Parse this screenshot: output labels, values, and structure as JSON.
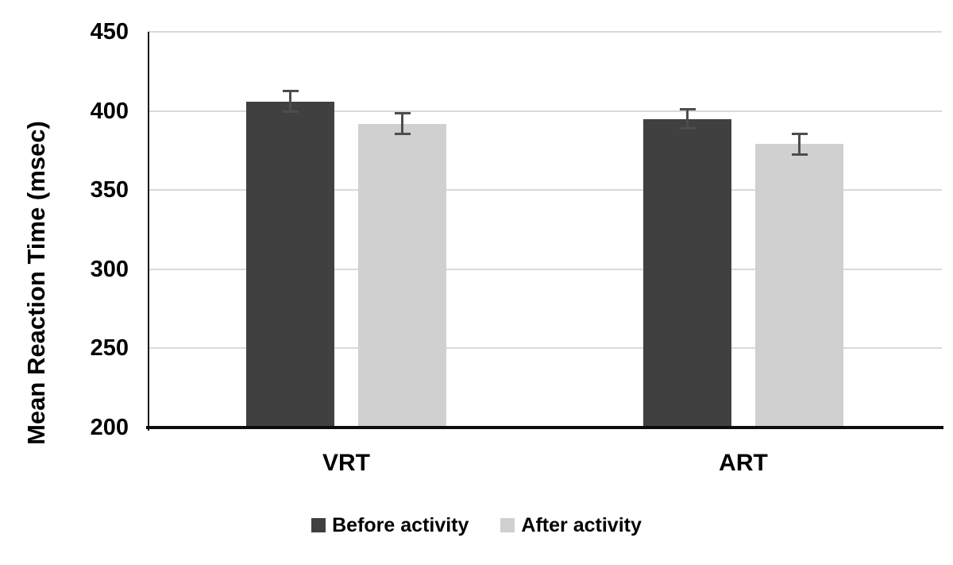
{
  "chart_data": {
    "type": "bar",
    "title": "",
    "xlabel": "",
    "ylabel": "Mean Reaction Time (msec)",
    "categories": [
      "VRT",
      "ART"
    ],
    "series": [
      {
        "name": "Before activity",
        "color": "#404040",
        "values": [
          406,
          395
        ],
        "errors": [
          6.5,
          6
        ]
      },
      {
        "name": "After activity",
        "color": "#d0d0d0",
        "values": [
          392,
          379
        ],
        "errors": [
          6.5,
          6.5
        ]
      }
    ],
    "ylim": [
      200,
      450
    ],
    "yticks": [
      200,
      250,
      300,
      350,
      400,
      450
    ],
    "grid": true,
    "legend_position": "bottom",
    "colors": {
      "gridline": "#d9d9d9",
      "axis": "#1a1a1a",
      "error_bar": "#4d4d4d",
      "text": "#000000"
    }
  }
}
